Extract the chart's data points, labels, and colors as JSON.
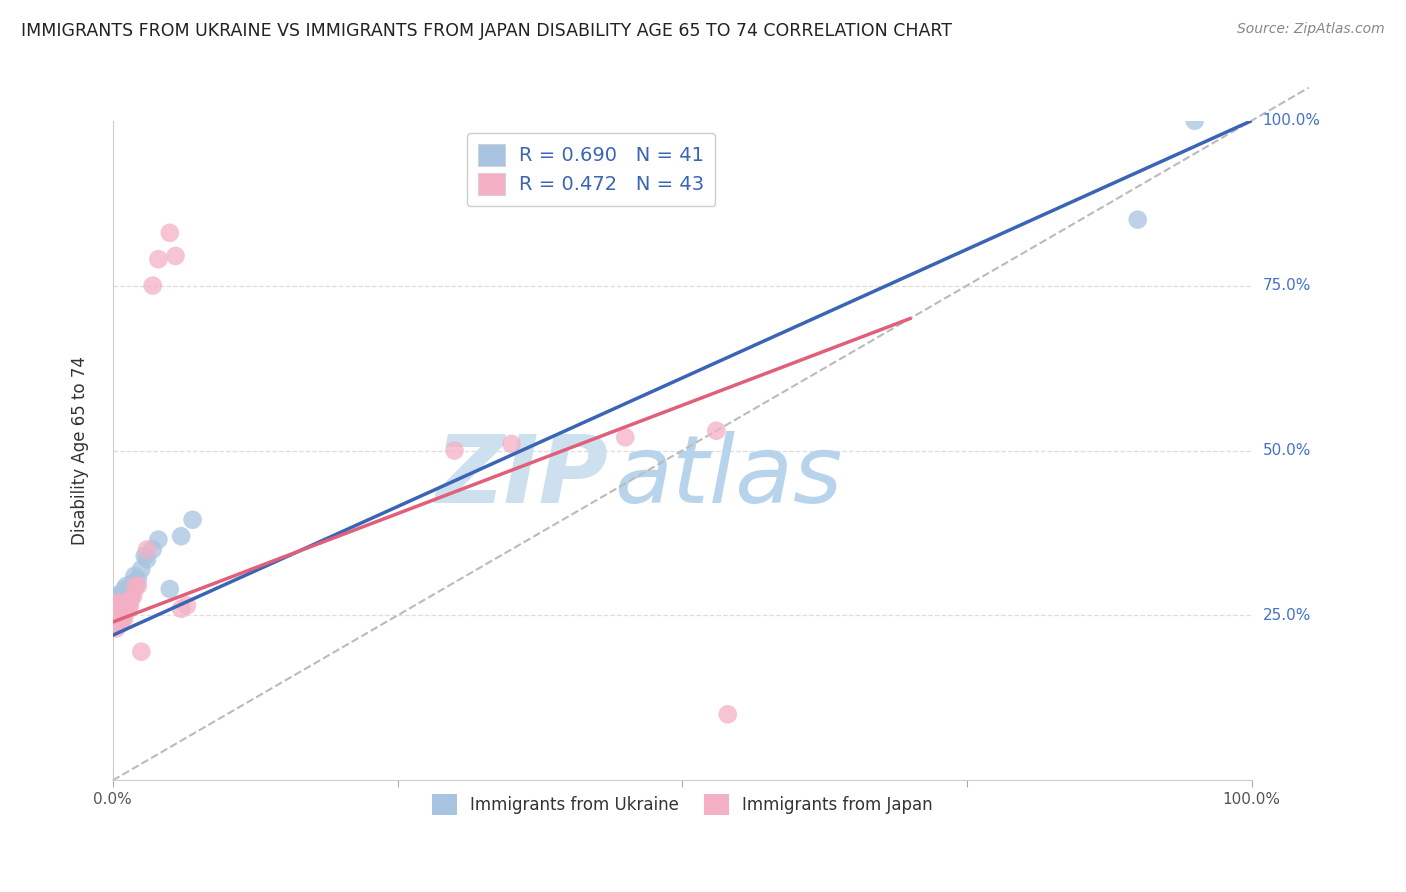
{
  "title": "IMMIGRANTS FROM UKRAINE VS IMMIGRANTS FROM JAPAN DISABILITY AGE 65 TO 74 CORRELATION CHART",
  "source": "Source: ZipAtlas.com",
  "ylabel": "Disability Age 65 to 74",
  "legend_ukraine": "Immigrants from Ukraine",
  "legend_japan": "Immigrants from Japan",
  "R_ukraine": 0.69,
  "N_ukraine": 41,
  "R_japan": 0.472,
  "N_japan": 43,
  "color_ukraine": "#a8c4e0",
  "color_ukraine_line": "#3a65b5",
  "color_japan": "#f4b0c4",
  "color_japan_line": "#e0607a",
  "background": "#ffffff",
  "grid_color": "#dddddd",
  "right_label_color": "#4472c4",
  "right_labels": [
    "100.0%",
    "75.0%",
    "50.0%",
    "25.0%"
  ],
  "ukraine_scatter_x": [
    0.001,
    0.002,
    0.003,
    0.003,
    0.004,
    0.004,
    0.005,
    0.005,
    0.006,
    0.006,
    0.007,
    0.007,
    0.008,
    0.008,
    0.009,
    0.009,
    0.01,
    0.01,
    0.011,
    0.011,
    0.012,
    0.012,
    0.013,
    0.014,
    0.015,
    0.016,
    0.017,
    0.018,
    0.019,
    0.02,
    0.022,
    0.025,
    0.028,
    0.03,
    0.035,
    0.04,
    0.05,
    0.06,
    0.07,
    0.9,
    0.95
  ],
  "ukraine_scatter_y": [
    0.27,
    0.26,
    0.28,
    0.275,
    0.255,
    0.265,
    0.25,
    0.27,
    0.245,
    0.265,
    0.26,
    0.28,
    0.255,
    0.275,
    0.25,
    0.27,
    0.265,
    0.29,
    0.26,
    0.28,
    0.275,
    0.295,
    0.27,
    0.275,
    0.29,
    0.28,
    0.285,
    0.3,
    0.31,
    0.295,
    0.305,
    0.32,
    0.34,
    0.335,
    0.35,
    0.365,
    0.29,
    0.37,
    0.395,
    0.85,
    1.0
  ],
  "japan_scatter_x": [
    0.001,
    0.002,
    0.002,
    0.003,
    0.003,
    0.004,
    0.004,
    0.004,
    0.005,
    0.005,
    0.005,
    0.006,
    0.006,
    0.007,
    0.007,
    0.008,
    0.008,
    0.009,
    0.009,
    0.01,
    0.01,
    0.011,
    0.012,
    0.013,
    0.014,
    0.015,
    0.016,
    0.018,
    0.02,
    0.022,
    0.025,
    0.03,
    0.035,
    0.04,
    0.05,
    0.055,
    0.06,
    0.065,
    0.3,
    0.35,
    0.45,
    0.53,
    0.54
  ],
  "japan_scatter_y": [
    0.24,
    0.26,
    0.255,
    0.23,
    0.255,
    0.245,
    0.26,
    0.265,
    0.235,
    0.25,
    0.27,
    0.245,
    0.265,
    0.24,
    0.255,
    0.245,
    0.26,
    0.25,
    0.265,
    0.245,
    0.26,
    0.255,
    0.265,
    0.27,
    0.26,
    0.265,
    0.275,
    0.28,
    0.295,
    0.295,
    0.195,
    0.35,
    0.75,
    0.79,
    0.83,
    0.795,
    0.26,
    0.265,
    0.5,
    0.51,
    0.52,
    0.53,
    0.1
  ]
}
